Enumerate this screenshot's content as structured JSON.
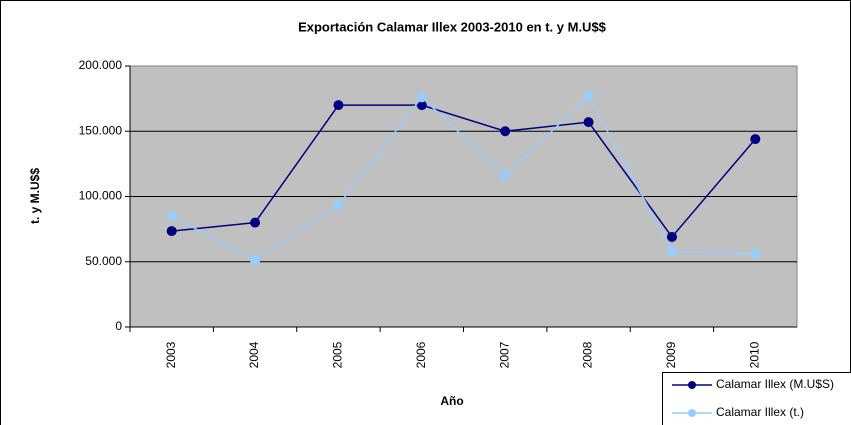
{
  "chart_data": {
    "type": "line",
    "title": "Exportación Calamar Illex 2003-2010 en t. y M.U$$",
    "x_label": "Año",
    "y_label": "t. y M.U$$",
    "categories": [
      "2003",
      "2004",
      "2005",
      "2006",
      "2007",
      "2008",
      "2009",
      "2010"
    ],
    "series": [
      {
        "name": "Calamar Illex (M.U$S)",
        "color": "#000080",
        "values": [
          73500,
          80000,
          170000,
          170000,
          150000,
          157000,
          69000,
          144000
        ]
      },
      {
        "name": "Calamar Illex (t.)",
        "color": "#99ccff",
        "values": [
          85000,
          51000,
          93500,
          176000,
          116000,
          177000,
          58000,
          56000
        ]
      }
    ],
    "ylim": [
      0,
      200000
    ],
    "yticks": [
      0,
      {
        "value": 50000,
        "label": "50.000"
      },
      {
        "value": 100000,
        "label": "100.000"
      },
      {
        "value": 150000,
        "label": "150.000"
      },
      {
        "value": 200000,
        "label": "200.000"
      }
    ],
    "grid": true,
    "plot_background": "#c0c0c0",
    "legend": "bottom-right"
  }
}
